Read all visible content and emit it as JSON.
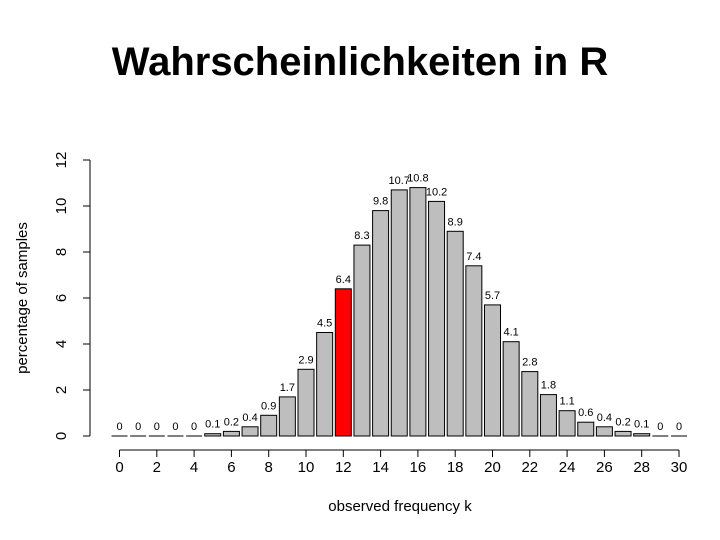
{
  "slide": {
    "title": "Wahrscheinlichkeiten in R"
  },
  "chart_data": {
    "type": "bar",
    "xlabel": "observed frequency k",
    "ylabel": "percentage of samples",
    "ylim": [
      0,
      12
    ],
    "yticks": [
      0,
      2,
      4,
      6,
      8,
      10,
      12
    ],
    "xticks": [
      0,
      2,
      4,
      6,
      8,
      10,
      12,
      14,
      16,
      18,
      20,
      22,
      24,
      26,
      28,
      30
    ],
    "categories": [
      0,
      1,
      2,
      3,
      4,
      5,
      6,
      7,
      8,
      9,
      10,
      11,
      12,
      13,
      14,
      15,
      16,
      17,
      18,
      19,
      20,
      21,
      22,
      23,
      24,
      25,
      26,
      27,
      28,
      29,
      30
    ],
    "values": [
      0,
      0,
      0,
      0,
      0,
      0.1,
      0.2,
      0.4,
      0.9,
      1.7,
      2.9,
      4.5,
      6.4,
      8.3,
      9.8,
      10.7,
      10.8,
      10.2,
      8.9,
      7.4,
      5.7,
      4.1,
      2.8,
      1.8,
      1.1,
      0.6,
      0.4,
      0.2,
      0.1,
      0,
      0
    ],
    "labels": [
      "0",
      "0",
      "0",
      "0",
      "0",
      "0.1",
      "0.2",
      "0.4",
      "0.9",
      "1.7",
      "2.9",
      "4.5",
      "6.4",
      "8.3",
      "9.8",
      "10.7",
      "10.8",
      "10.2",
      "8.9",
      "7.4",
      "5.7",
      "4.1",
      "2.8",
      "1.8",
      "1.1",
      "0.6",
      "0.4",
      "0.2",
      "0.1",
      "0",
      "0"
    ],
    "highlight_index": 12,
    "colors": {
      "bar": "#bebebe",
      "highlight": "#ff0000",
      "border": "#000000"
    },
    "grid": false
  }
}
